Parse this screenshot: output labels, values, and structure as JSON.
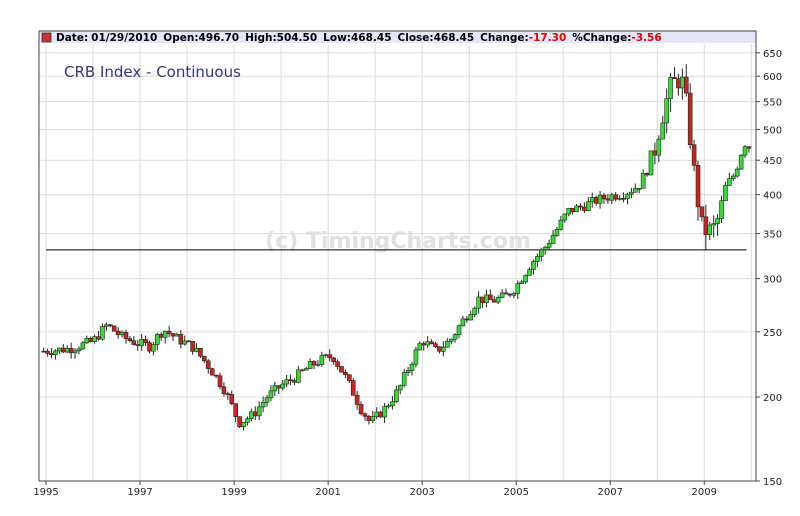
{
  "chart_data": {
    "type": "candlestick",
    "title": "CRB Index - Continuous",
    "watermark": "(c) TimingCharts.com",
    "y_scale": "log",
    "ylim": [
      150,
      670
    ],
    "xlim": [
      1994.85,
      2010.1
    ],
    "y_ticks": [
      "650",
      "600",
      "550",
      "500",
      "450",
      "400",
      "350",
      "300",
      "250",
      "200",
      "150"
    ],
    "x_ticks": [
      "1995",
      "1997",
      "1999",
      "2001",
      "2003",
      "2005",
      "2007",
      "2009"
    ],
    "grid": true,
    "colors": {
      "up": "#33dd33",
      "down": "#cc2222",
      "header_bg": "#e6e6fa",
      "title": "#333388",
      "legend_swatch": "#cc3333",
      "negative": "#dd0000"
    },
    "header": {
      "date_label": "Date:",
      "date": "01/29/2010",
      "open_label": "Open:",
      "open": "496.70",
      "high_label": "High:",
      "high": "504.50",
      "low_label": "Low:",
      "low": "468.45",
      "close_label": "Close:",
      "close": "468.45",
      "change_label": "Change:",
      "change": "-17.30",
      "pct_label": "%Change:",
      "pct": "-3.56"
    },
    "support_line": {
      "x_start": 1995.0,
      "x_end": 2009.9,
      "y": 331
    },
    "price_path": [
      [
        1994.95,
        234
      ],
      [
        1995.5,
        236
      ],
      [
        1996.0,
        242
      ],
      [
        1996.3,
        256
      ],
      [
        1996.6,
        246
      ],
      [
        1996.9,
        241
      ],
      [
        1997.2,
        238
      ],
      [
        1997.5,
        252
      ],
      [
        1997.8,
        244
      ],
      [
        1998.1,
        238
      ],
      [
        1998.4,
        225
      ],
      [
        1998.8,
        205
      ],
      [
        1999.1,
        183
      ],
      [
        1999.4,
        188
      ],
      [
        1999.7,
        200
      ],
      [
        2000.0,
        208
      ],
      [
        2000.3,
        214
      ],
      [
        2000.6,
        222
      ],
      [
        2000.9,
        228
      ],
      [
        2001.1,
        230
      ],
      [
        2001.4,
        212
      ],
      [
        2001.7,
        192
      ],
      [
        2001.9,
        183
      ],
      [
        2002.2,
        192
      ],
      [
        2002.5,
        205
      ],
      [
        2002.8,
        228
      ],
      [
        2003.0,
        243
      ],
      [
        2003.3,
        234
      ],
      [
        2003.6,
        243
      ],
      [
        2003.9,
        262
      ],
      [
        2004.2,
        280
      ],
      [
        2004.5,
        278
      ],
      [
        2004.8,
        283
      ],
      [
        2005.0,
        292
      ],
      [
        2005.3,
        315
      ],
      [
        2005.6,
        333
      ],
      [
        2005.9,
        358
      ],
      [
        2006.1,
        378
      ],
      [
        2006.4,
        384
      ],
      [
        2006.7,
        392
      ],
      [
        2007.0,
        398
      ],
      [
        2007.3,
        402
      ],
      [
        2007.6,
        412
      ],
      [
        2007.9,
        450
      ],
      [
        2008.1,
        525
      ],
      [
        2008.3,
        580
      ],
      [
        2008.5,
        600
      ],
      [
        2008.6,
        556
      ],
      [
        2008.8,
        420
      ],
      [
        2008.95,
        357
      ],
      [
        2009.1,
        352
      ],
      [
        2009.25,
        358
      ],
      [
        2009.45,
        410
      ],
      [
        2009.65,
        430
      ],
      [
        2009.85,
        478
      ],
      [
        2010.0,
        468
      ]
    ]
  }
}
